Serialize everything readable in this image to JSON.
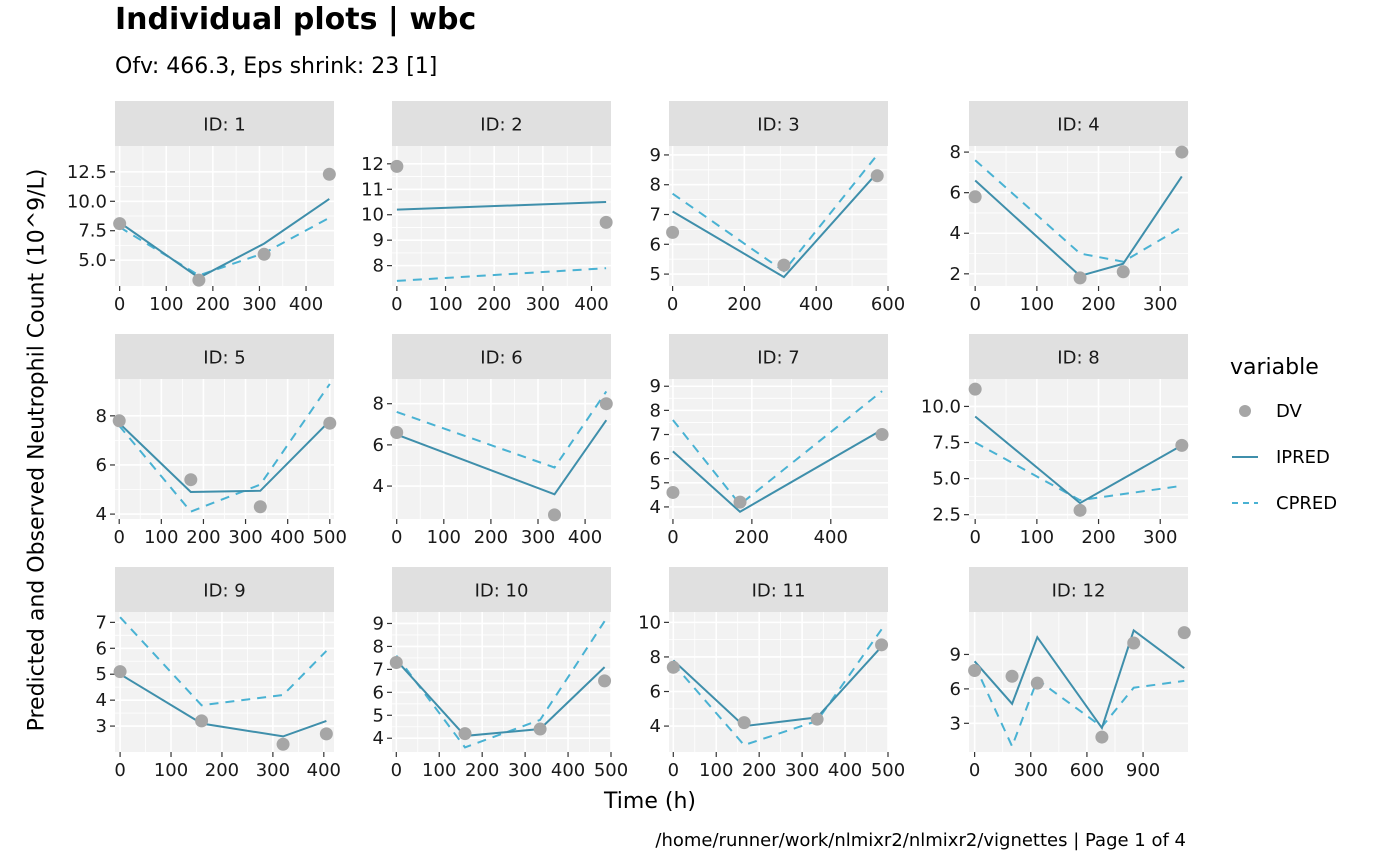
{
  "title": "Individual plots | wbc",
  "subtitle": "Ofv: 466.3, Eps shrink: 23 [1]",
  "ylabel": "Predicted and Observed Neutrophil Count (10^9/L)",
  "xlabel": "Time (h)",
  "caption": "/home/runner/work/nlmixr2/nlmixr2/vignettes | Page 1 of 4",
  "colors": {
    "dv": "#a6a6a6",
    "ipred": "#3f8fab",
    "cpred": "#49b2d3",
    "panel_bg": "#f2f2f2",
    "strip_bg": "#e0e0e0",
    "grid": "#ffffff"
  },
  "legend": {
    "title": "variable",
    "items": [
      {
        "label": "DV",
        "kind": "point"
      },
      {
        "label": "IPRED",
        "kind": "solid"
      },
      {
        "label": "CPRED",
        "kind": "dashed"
      }
    ]
  },
  "chart_data": [
    {
      "type": "line",
      "strip": "ID: 1",
      "xlim": [
        -10,
        460
      ],
      "ylim": [
        2.8,
        14.7
      ],
      "xticks": [
        0,
        100,
        200,
        300,
        400
      ],
      "xtick_labels": [
        "0",
        "100",
        "200",
        "300",
        "400"
      ],
      "yticks": [
        5.0,
        7.5,
        10.0,
        12.5
      ],
      "ytick_labels": [
        "5.0",
        "7.5",
        "10.0",
        "12.5"
      ],
      "dv": {
        "x": [
          0,
          170,
          310,
          450
        ],
        "y": [
          8.1,
          3.3,
          5.5,
          12.3
        ]
      },
      "ipred": {
        "x": [
          0,
          170,
          310,
          450
        ],
        "y": [
          8.2,
          3.5,
          6.4,
          10.2
        ]
      },
      "cpred": {
        "x": [
          0,
          170,
          310,
          450
        ],
        "y": [
          7.8,
          3.7,
          5.6,
          8.6
        ]
      }
    },
    {
      "type": "line",
      "strip": "ID: 2",
      "xlim": [
        -10,
        440
      ],
      "ylim": [
        7.2,
        12.7
      ],
      "xticks": [
        0,
        100,
        200,
        300,
        400
      ],
      "xtick_labels": [
        "0",
        "100",
        "200",
        "300",
        "400"
      ],
      "yticks": [
        8,
        9,
        10,
        11,
        12
      ],
      "ytick_labels": [
        "8",
        "9",
        "10",
        "11",
        "12"
      ],
      "dv": {
        "x": [
          0,
          430
        ],
        "y": [
          11.9,
          9.7
        ]
      },
      "ipred": {
        "x": [
          0,
          430
        ],
        "y": [
          10.2,
          10.5
        ]
      },
      "cpred": {
        "x": [
          0,
          430
        ],
        "y": [
          7.4,
          7.9
        ]
      }
    },
    {
      "type": "line",
      "strip": "ID: 3",
      "xlim": [
        -10,
        600
      ],
      "ylim": [
        4.6,
        9.3
      ],
      "xticks": [
        0,
        200,
        400,
        600
      ],
      "xtick_labels": [
        "0",
        "200",
        "400",
        "600"
      ],
      "yticks": [
        5,
        6,
        7,
        8,
        9
      ],
      "ytick_labels": [
        "5",
        "6",
        "7",
        "8",
        "9"
      ],
      "dv": {
        "x": [
          0,
          310,
          570
        ],
        "y": [
          6.4,
          5.3,
          8.3
        ]
      },
      "ipred": {
        "x": [
          0,
          310,
          570
        ],
        "y": [
          7.1,
          4.9,
          8.4
        ]
      },
      "cpred": {
        "x": [
          0,
          310,
          570
        ],
        "y": [
          7.7,
          5.1,
          9.0
        ]
      }
    },
    {
      "type": "line",
      "strip": "ID: 4",
      "xlim": [
        -10,
        345
      ],
      "ylim": [
        1.4,
        8.3
      ],
      "xticks": [
        0,
        100,
        200,
        300
      ],
      "xtick_labels": [
        "0",
        "100",
        "200",
        "300"
      ],
      "yticks": [
        2,
        4,
        6,
        8
      ],
      "ytick_labels": [
        "2",
        "4",
        "6",
        "8"
      ],
      "dv": {
        "x": [
          0,
          170,
          240,
          335
        ],
        "y": [
          5.8,
          1.8,
          2.1,
          8.0
        ]
      },
      "ipred": {
        "x": [
          0,
          170,
          240,
          335
        ],
        "y": [
          6.6,
          1.9,
          2.5,
          6.8
        ]
      },
      "cpred": {
        "x": [
          0,
          170,
          240,
          335
        ],
        "y": [
          7.6,
          3.0,
          2.6,
          4.3
        ]
      }
    },
    {
      "type": "line",
      "strip": "ID: 5",
      "xlim": [
        -10,
        510
      ],
      "ylim": [
        3.8,
        9.5
      ],
      "xticks": [
        0,
        100,
        200,
        300,
        400,
        500
      ],
      "xtick_labels": [
        "0",
        "100",
        "200",
        "300",
        "400",
        "500"
      ],
      "yticks": [
        4,
        6,
        8
      ],
      "ytick_labels": [
        "4",
        "6",
        "8"
      ],
      "dv": {
        "x": [
          0,
          170,
          335,
          500
        ],
        "y": [
          7.8,
          5.4,
          4.3,
          7.7
        ]
      },
      "ipred": {
        "x": [
          0,
          170,
          335,
          500
        ],
        "y": [
          7.7,
          4.9,
          4.95,
          7.8
        ]
      },
      "cpred": {
        "x": [
          0,
          170,
          335,
          500
        ],
        "y": [
          7.6,
          4.1,
          5.2,
          9.3
        ]
      }
    },
    {
      "type": "line",
      "strip": "ID: 6",
      "xlim": [
        -10,
        455
      ],
      "ylim": [
        2.4,
        9.2
      ],
      "xticks": [
        0,
        100,
        200,
        300,
        400
      ],
      "xtick_labels": [
        "0",
        "100",
        "200",
        "300",
        "400"
      ],
      "yticks": [
        4,
        6,
        8
      ],
      "ytick_labels": [
        "4",
        "6",
        "8"
      ],
      "dv": {
        "x": [
          0,
          335,
          445
        ],
        "y": [
          6.6,
          2.6,
          8.0
        ]
      },
      "ipred": {
        "x": [
          0,
          335,
          445
        ],
        "y": [
          6.5,
          3.6,
          7.2
        ]
      },
      "cpred": {
        "x": [
          0,
          335,
          445
        ],
        "y": [
          7.6,
          4.9,
          8.6
        ]
      }
    },
    {
      "type": "line",
      "strip": "ID: 7",
      "xlim": [
        -10,
        545
      ],
      "ylim": [
        3.5,
        9.3
      ],
      "xticks": [
        0,
        200,
        400
      ],
      "xtick_labels": [
        "0",
        "200",
        "400"
      ],
      "yticks": [
        4,
        5,
        6,
        7,
        8,
        9
      ],
      "ytick_labels": [
        "4",
        "5",
        "6",
        "7",
        "8",
        "9"
      ],
      "dv": {
        "x": [
          0,
          170,
          530
        ],
        "y": [
          4.6,
          4.2,
          7.0
        ]
      },
      "ipred": {
        "x": [
          0,
          170,
          530
        ],
        "y": [
          6.3,
          3.8,
          7.2
        ]
      },
      "cpred": {
        "x": [
          0,
          170,
          530
        ],
        "y": [
          7.6,
          4.1,
          8.8
        ]
      }
    },
    {
      "type": "line",
      "strip": "ID: 8",
      "xlim": [
        -10,
        345
      ],
      "ylim": [
        2.2,
        11.9
      ],
      "xticks": [
        0,
        100,
        200,
        300
      ],
      "xtick_labels": [
        "0",
        "100",
        "200",
        "300"
      ],
      "yticks": [
        2.5,
        5.0,
        7.5,
        10.0
      ],
      "ytick_labels": [
        "2.5",
        "5.0",
        "7.5",
        "10.0"
      ],
      "dv": {
        "x": [
          0,
          170,
          335
        ],
        "y": [
          11.2,
          2.8,
          7.3
        ]
      },
      "ipred": {
        "x": [
          0,
          170,
          335
        ],
        "y": [
          9.3,
          3.3,
          7.3
        ]
      },
      "cpred": {
        "x": [
          0,
          170,
          335
        ],
        "y": [
          7.5,
          3.5,
          4.5
        ]
      }
    },
    {
      "type": "line",
      "strip": "ID: 9",
      "xlim": [
        -10,
        420
      ],
      "ylim": [
        2.0,
        7.4
      ],
      "xticks": [
        0,
        100,
        200,
        300,
        400
      ],
      "xtick_labels": [
        "0",
        "100",
        "200",
        "300",
        "400"
      ],
      "yticks": [
        3,
        4,
        5,
        6,
        7
      ],
      "ytick_labels": [
        "3",
        "4",
        "5",
        "6",
        "7"
      ],
      "dv": {
        "x": [
          0,
          160,
          320,
          405
        ],
        "y": [
          5.1,
          3.2,
          2.3,
          2.7
        ]
      },
      "ipred": {
        "x": [
          0,
          160,
          320,
          405
        ],
        "y": [
          5.0,
          3.1,
          2.6,
          3.2
        ]
      },
      "cpred": {
        "x": [
          0,
          160,
          320,
          405
        ],
        "y": [
          7.2,
          3.8,
          4.2,
          5.9
        ]
      }
    },
    {
      "type": "line",
      "strip": "ID: 10",
      "xlim": [
        -10,
        500
      ],
      "ylim": [
        3.4,
        9.5
      ],
      "xticks": [
        0,
        100,
        200,
        300,
        400,
        500
      ],
      "xtick_labels": [
        "0",
        "100",
        "200",
        "300",
        "400",
        "500"
      ],
      "yticks": [
        4,
        5,
        6,
        7,
        8,
        9
      ],
      "ytick_labels": [
        "4",
        "5",
        "6",
        "7",
        "8",
        "9"
      ],
      "dv": {
        "x": [
          0,
          160,
          335,
          485
        ],
        "y": [
          7.3,
          4.2,
          4.4,
          6.5
        ]
      },
      "ipred": {
        "x": [
          0,
          160,
          335,
          485
        ],
        "y": [
          7.4,
          4.1,
          4.4,
          7.1
        ]
      },
      "cpred": {
        "x": [
          0,
          160,
          335,
          485
        ],
        "y": [
          7.6,
          3.6,
          4.8,
          9.1
        ]
      }
    },
    {
      "type": "line",
      "strip": "ID: 11",
      "xlim": [
        -10,
        500
      ],
      "ylim": [
        2.5,
        10.6
      ],
      "xticks": [
        0,
        100,
        200,
        300,
        400,
        500
      ],
      "xtick_labels": [
        "0",
        "100",
        "200",
        "300",
        "400",
        "500"
      ],
      "yticks": [
        4,
        6,
        8,
        10
      ],
      "ytick_labels": [
        "4",
        "6",
        "8",
        "10"
      ],
      "dv": {
        "x": [
          0,
          165,
          335,
          485
        ],
        "y": [
          7.4,
          4.2,
          4.4,
          8.7
        ]
      },
      "ipred": {
        "x": [
          0,
          165,
          335,
          485
        ],
        "y": [
          7.8,
          4.0,
          4.5,
          8.6
        ]
      },
      "cpred": {
        "x": [
          0,
          165,
          335,
          485
        ],
        "y": [
          7.6,
          2.9,
          4.3,
          9.6
        ]
      }
    },
    {
      "type": "line",
      "strip": "ID: 12",
      "xlim": [
        -30,
        1140
      ],
      "ylim": [
        0.5,
        12.7
      ],
      "xticks": [
        0,
        300,
        600,
        900
      ],
      "xtick_labels": [
        "0",
        "300",
        "600",
        "900"
      ],
      "yticks": [
        3,
        6,
        9
      ],
      "ytick_labels": [
        "3",
        "6",
        "9"
      ],
      "dv": {
        "x": [
          0,
          200,
          335,
          680,
          850,
          1120
        ],
        "y": [
          7.6,
          7.1,
          6.5,
          1.8,
          10.0,
          10.9
        ]
      },
      "ipred": {
        "x": [
          0,
          200,
          335,
          680,
          850,
          1120
        ],
        "y": [
          8.4,
          4.7,
          10.5,
          2.6,
          11.1,
          7.8
        ]
      },
      "cpred": {
        "x": [
          0,
          200,
          335,
          680,
          850,
          1120
        ],
        "y": [
          8.1,
          1.0,
          6.8,
          2.7,
          6.1,
          6.7
        ]
      }
    }
  ]
}
